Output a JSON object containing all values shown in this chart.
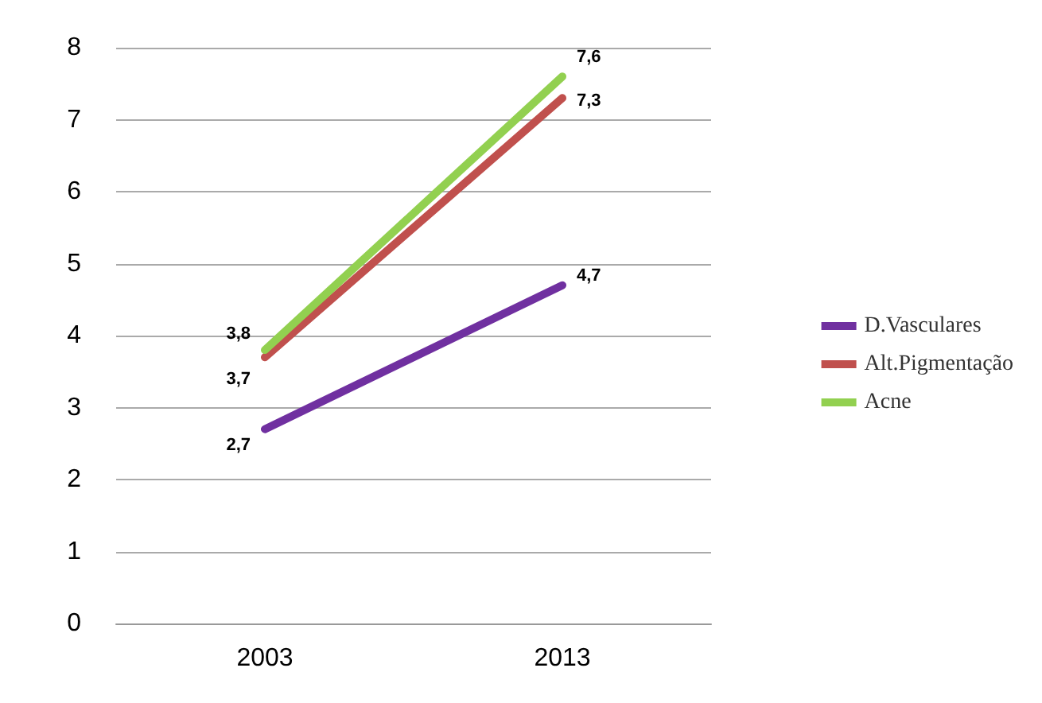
{
  "chart_data": {
    "type": "line",
    "categories": [
      "2003",
      "2013"
    ],
    "series": [
      {
        "name": "D.Vasculares",
        "color": "#7030a0",
        "values": [
          2.7,
          4.7
        ],
        "value_labels": [
          "2,7",
          "4,7"
        ]
      },
      {
        "name": "Alt.Pigmentação",
        "color": "#c0504d",
        "values": [
          3.7,
          7.3
        ],
        "value_labels": [
          "3,7",
          "7,3"
        ]
      },
      {
        "name": "Acne",
        "color": "#92d050",
        "values": [
          3.8,
          7.6
        ],
        "value_labels": [
          "3,8",
          "7,6"
        ]
      }
    ],
    "ylim": [
      0,
      8
    ],
    "yticks": [
      0,
      1,
      2,
      3,
      4,
      5,
      6,
      7,
      8
    ],
    "grid": "y",
    "legend": "right",
    "marker": "none",
    "line_style": "solid"
  }
}
